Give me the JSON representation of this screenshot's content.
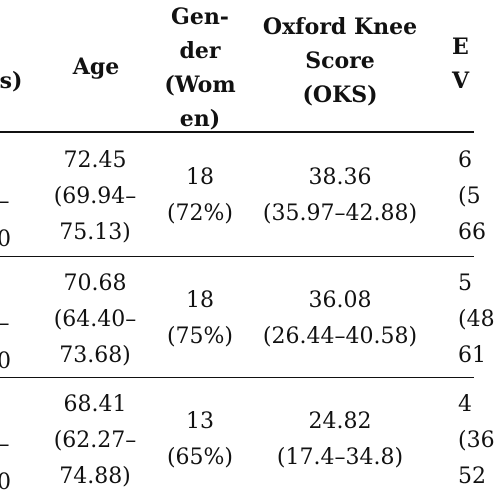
{
  "table": {
    "headers": {
      "col0_tail": "s)",
      "age": "Age",
      "gender_lines": [
        "Gen-",
        "der",
        "(Wom",
        "en)"
      ],
      "oks_lines": [
        "Oxford Knee",
        "Score",
        "(OKS)"
      ],
      "col4_lines": [
        "E",
        "V"
      ]
    },
    "rows": [
      {
        "col0_tail": [
          "–",
          "0"
        ],
        "age_lines": [
          "72.45",
          "(69.94–",
          "75.13)"
        ],
        "gender_lines": [
          "18",
          "(72%)"
        ],
        "oks_lines": [
          "38.36",
          "(35.97–42.88)"
        ],
        "col4_lines": [
          "6",
          "(5",
          "66"
        ]
      },
      {
        "col0_tail": [
          "–",
          "0"
        ],
        "age_lines": [
          "70.68",
          "(64.40–",
          "73.68)"
        ],
        "gender_lines": [
          "18",
          "(75%)"
        ],
        "oks_lines": [
          "36.08",
          "(26.44–40.58)"
        ],
        "col4_lines": [
          "5",
          "(48",
          "61"
        ]
      },
      {
        "col0_tail": [
          "–",
          "0"
        ],
        "age_lines": [
          "68.41",
          "(62.27–",
          "74.88)"
        ],
        "gender_lines": [
          "13",
          "(65%)"
        ],
        "oks_lines": [
          "24.82",
          "(17.4–34.8)"
        ],
        "col4_lines": [
          "4",
          "(36",
          "52"
        ]
      }
    ]
  }
}
